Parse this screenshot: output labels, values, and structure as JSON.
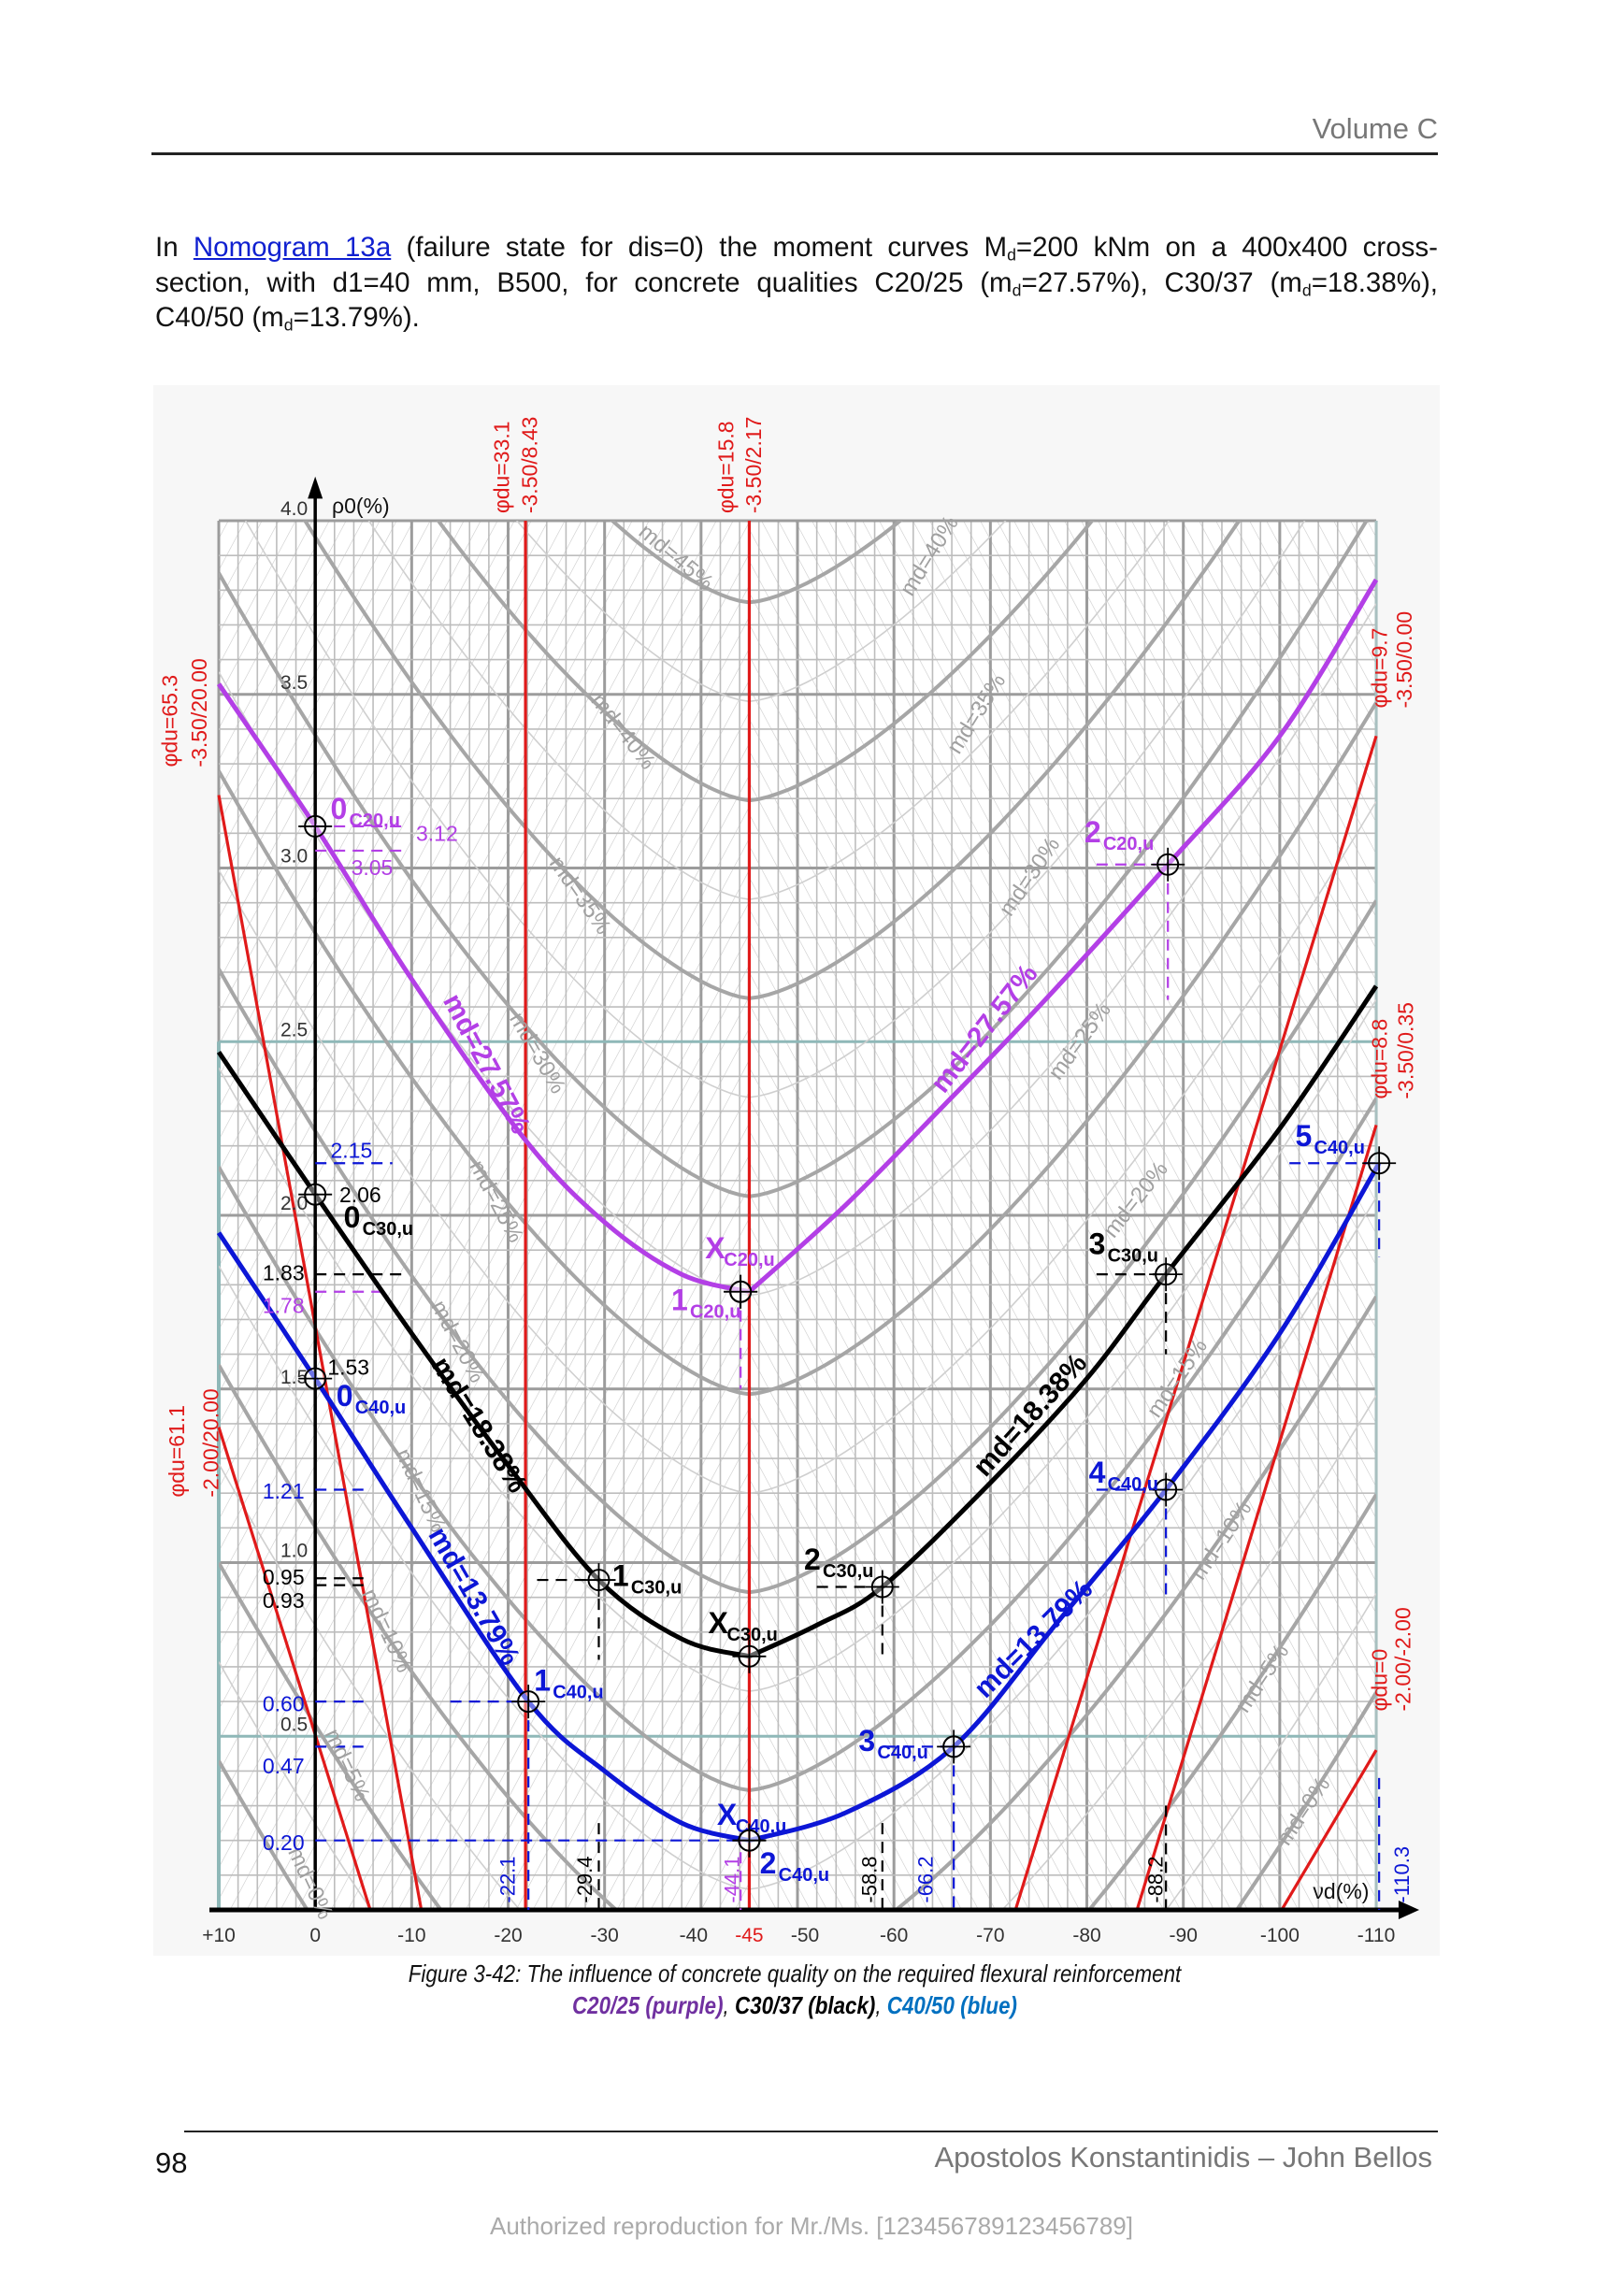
{
  "header": {
    "running_head": "Volume C"
  },
  "intro": {
    "l1_a": "In ",
    "link": "Nomogram 13a",
    "l1_b": " (failure state for dis=0) the moment curves M",
    "sub_d": "d",
    "l1_c": "=200 kNm on a 400x400 cross-",
    "l2_a": "section, with d1=40 mm, B500, for concrete qualities C20/25 (m",
    "l2_b": "=27.57%), C30/37 (m",
    "l2_c": "=18.38%),",
    "l3_a": "C40/50 (m",
    "l3_b": "=13.79%)."
  },
  "caption": {
    "line1": "Figure 3-42: The influence of concrete quality on the required flexural reinforcement",
    "c20": "C20/25 (purple)",
    "sep": ", ",
    "c30": "C30/37 (black)",
    "c40": "C40/50 (blue)"
  },
  "footer": {
    "page_number": "98",
    "authors": "Apostolos Konstantinidis – John Bellos",
    "watermark": "Authorized reproduction for Mr./Ms. [123456789123456789]"
  },
  "chart_data": {
    "type": "line",
    "x_axis": {
      "label": "νd(%)",
      "range": [
        10,
        -110
      ],
      "ticks": [
        "+10",
        "0",
        "-10",
        "-20",
        "-30",
        "-40",
        "-45",
        "-50",
        "-60",
        "-70",
        "-80",
        "-90",
        "-100",
        "-110"
      ],
      "tick_values": [
        10,
        0,
        -10,
        -20,
        -30,
        -40,
        -45,
        -50,
        -60,
        -70,
        -80,
        -90,
        -100,
        -110
      ],
      "highlighted_tick": "-45"
    },
    "y_axis": {
      "label": "ρ0(%)",
      "range": [
        0,
        4
      ],
      "ticks": [
        "4.0",
        "3.5",
        "3.0",
        "2.5",
        "2.0",
        "1.5",
        "1.0",
        "0.5"
      ],
      "tick_values": [
        4.0,
        3.5,
        3.0,
        2.5,
        2.0,
        1.5,
        1.0,
        0.5
      ]
    },
    "grid": true,
    "colors": {
      "purple": "#b33fe6",
      "black": "#000000",
      "blue": "#0c16d6",
      "red": "#e01a1a",
      "grid": "#b8b8b8",
      "teal": "#8fb8b8"
    },
    "series": [
      {
        "name": "md=27.57%",
        "concrete": "C20/25",
        "color": "#b33fe6",
        "points": [
          [
            10,
            3.53
          ],
          [
            0,
            3.12
          ],
          [
            -10,
            2.68
          ],
          [
            -21.7,
            2.22
          ],
          [
            -30,
            1.98
          ],
          [
            -38,
            1.83
          ],
          [
            -45,
            1.78
          ],
          [
            -55,
            2.03
          ],
          [
            -65.3,
            2.32
          ],
          [
            -75,
            2.6
          ],
          [
            -88.4,
            3.01
          ],
          [
            -100,
            3.38
          ],
          [
            -110,
            3.83
          ]
        ]
      },
      {
        "name": "md=18.38%",
        "concrete": "C30/37",
        "color": "#000000",
        "points": [
          [
            10,
            2.47
          ],
          [
            0,
            2.06
          ],
          [
            -10,
            1.66
          ],
          [
            -20,
            1.28
          ],
          [
            -29.4,
            0.95
          ],
          [
            -38,
            0.78
          ],
          [
            -45,
            0.73
          ],
          [
            -52,
            0.82
          ],
          [
            -58.8,
            0.93
          ],
          [
            -70,
            1.23
          ],
          [
            -80,
            1.53
          ],
          [
            -88.2,
            1.83
          ],
          [
            -100,
            2.25
          ],
          [
            -110,
            2.66
          ]
        ]
      },
      {
        "name": "md=13.79%",
        "concrete": "C40/50",
        "color": "#0c16d6",
        "points": [
          [
            10,
            1.95
          ],
          [
            0,
            1.53
          ],
          [
            -10,
            1.1
          ],
          [
            -22.1,
            0.6
          ],
          [
            -30,
            0.4
          ],
          [
            -38,
            0.25
          ],
          [
            -45,
            0.2
          ],
          [
            -55,
            0.28
          ],
          [
            -66.2,
            0.47
          ],
          [
            -77,
            0.83
          ],
          [
            -88.2,
            1.21
          ],
          [
            -100,
            1.66
          ],
          [
            -110.3,
            2.15
          ]
        ]
      }
    ],
    "md_curves": [
      0,
      5,
      10,
      15,
      20,
      25,
      30,
      35,
      40,
      45
    ],
    "md_labels": [
      "md=45%",
      "md=40%",
      "md=40%",
      "md=35%",
      "md=35%",
      "md=30%",
      "md=30%",
      "md=25%",
      "md=25%",
      "md=20%",
      "md=20%",
      "md=15%",
      "md=15%",
      "md=10%",
      "md=10%",
      "md=5%",
      "md=5%",
      "md=0%",
      "md=0%"
    ],
    "red_lines": [
      {
        "label": "φdu=65.3",
        "strain": "-3.50/20.00",
        "from": [
          10,
          3.21
        ],
        "to": [
          -11,
          0
        ]
      },
      {
        "label": "φdu=61.1",
        "strain": "-2.00/20.00",
        "from": [
          10,
          1.39
        ],
        "to": [
          -5.7,
          0
        ]
      },
      {
        "label": "φdu=33.1",
        "strain": "-3.50/8.43",
        "from": [
          -21.8,
          4
        ],
        "to": [
          -21.8,
          0
        ]
      },
      {
        "label": "φdu=15.8",
        "strain": "-3.50/2.17",
        "from": [
          -45,
          4
        ],
        "to": [
          -45,
          0
        ]
      },
      {
        "label": "φdu=9.7",
        "strain": "-3.50/0.00",
        "from": [
          -110,
          3.38
        ],
        "to": [
          -72.6,
          0
        ]
      },
      {
        "label": "φdu=8.8",
        "strain": "-3.50/0.35",
        "from": [
          -110,
          2.26
        ],
        "to": [
          -85.2,
          0
        ]
      },
      {
        "label": "φdu=0",
        "strain": "-2.00/-2.00",
        "from": [
          -110,
          0.46
        ],
        "to": [
          -100.2,
          0
        ]
      }
    ],
    "marked_points": [
      {
        "num": "0",
        "sub": "C20,u",
        "x": 0,
        "y": 3.12,
        "color": "#b33fe6"
      },
      {
        "num": "1",
        "sub": "C20,u",
        "x": -44.1,
        "y": 1.78,
        "color": "#b33fe6"
      },
      {
        "num": "X",
        "sub": "C20,u",
        "x": -44.1,
        "y": 1.78,
        "color": "#b33fe6"
      },
      {
        "num": "2",
        "sub": "C20,u",
        "x": -88.4,
        "y": 3.01,
        "color": "#b33fe6"
      },
      {
        "num": "0",
        "sub": "C30,u",
        "x": 0,
        "y": 2.06,
        "color": "#000000"
      },
      {
        "num": "1",
        "sub": "C30,u",
        "x": -29.4,
        "y": 0.95,
        "color": "#000000"
      },
      {
        "num": "X",
        "sub": "C30,u",
        "x": -45,
        "y": 0.73,
        "color": "#000000"
      },
      {
        "num": "2",
        "sub": "C30,u",
        "x": -58.8,
        "y": 0.93,
        "color": "#000000"
      },
      {
        "num": "3",
        "sub": "C30,u",
        "x": -88.2,
        "y": 1.83,
        "color": "#000000"
      },
      {
        "num": "0",
        "sub": "C40,u",
        "x": 0,
        "y": 1.53,
        "color": "#0c16d6"
      },
      {
        "num": "1",
        "sub": "C40,u",
        "x": -22.1,
        "y": 0.6,
        "color": "#0c16d6"
      },
      {
        "num": "X",
        "sub": "C40,u",
        "x": -45,
        "y": 0.2,
        "color": "#0c16d6"
      },
      {
        "num": "2",
        "sub": "C40,u",
        "x": -45,
        "y": 0.2,
        "color": "#0c16d6"
      },
      {
        "num": "3",
        "sub": "C40,u",
        "x": -66.2,
        "y": 0.47,
        "color": "#0c16d6"
      },
      {
        "num": "4",
        "sub": "C40,u",
        "x": -88.2,
        "y": 1.21,
        "color": "#0c16d6"
      },
      {
        "num": "5",
        "sub": "C40,u",
        "x": -110.3,
        "y": 2.15,
        "color": "#0c16d6"
      }
    ],
    "rho_readouts": [
      {
        "text": "3.12",
        "value": 3.12,
        "color": "#b33fe6"
      },
      {
        "text": "3.05",
        "value": 3.05,
        "color": "#b33fe6"
      },
      {
        "text": "2.15",
        "value": 2.15,
        "color": "#0c16d6"
      },
      {
        "text": "2.06",
        "value": 2.06,
        "color": "#000000"
      },
      {
        "text": "1.83",
        "value": 1.83,
        "color": "#000000"
      },
      {
        "text": "1.78",
        "value": 1.78,
        "color": "#b33fe6"
      },
      {
        "text": "1.53",
        "value": 1.53,
        "color": "#000000"
      },
      {
        "text": "1.21",
        "value": 1.21,
        "color": "#0c16d6"
      },
      {
        "text": "0.95",
        "value": 0.95,
        "color": "#000000"
      },
      {
        "text": "0.93",
        "value": 0.93,
        "color": "#000000"
      },
      {
        "text": "0.60",
        "value": 0.6,
        "color": "#0c16d6"
      },
      {
        "text": "0.47",
        "value": 0.47,
        "color": "#0c16d6"
      },
      {
        "text": "0.20",
        "value": 0.2,
        "color": "#0c16d6"
      }
    ],
    "nu_readouts": [
      {
        "text": "-22.1",
        "value": -22.1,
        "color": "#0c16d6"
      },
      {
        "text": "-29.4",
        "value": -29.4,
        "color": "#000000"
      },
      {
        "text": "-44.1",
        "value": -44.1,
        "color": "#b33fe6"
      },
      {
        "text": "-58.8",
        "value": -58.8,
        "color": "#000000"
      },
      {
        "text": "-66.2",
        "value": -66.2,
        "color": "#0c16d6"
      },
      {
        "text": "-88.2",
        "value": -88.2,
        "color": "#000000"
      },
      {
        "text": "-110.3",
        "value": -110.3,
        "color": "#0c16d6"
      }
    ]
  }
}
